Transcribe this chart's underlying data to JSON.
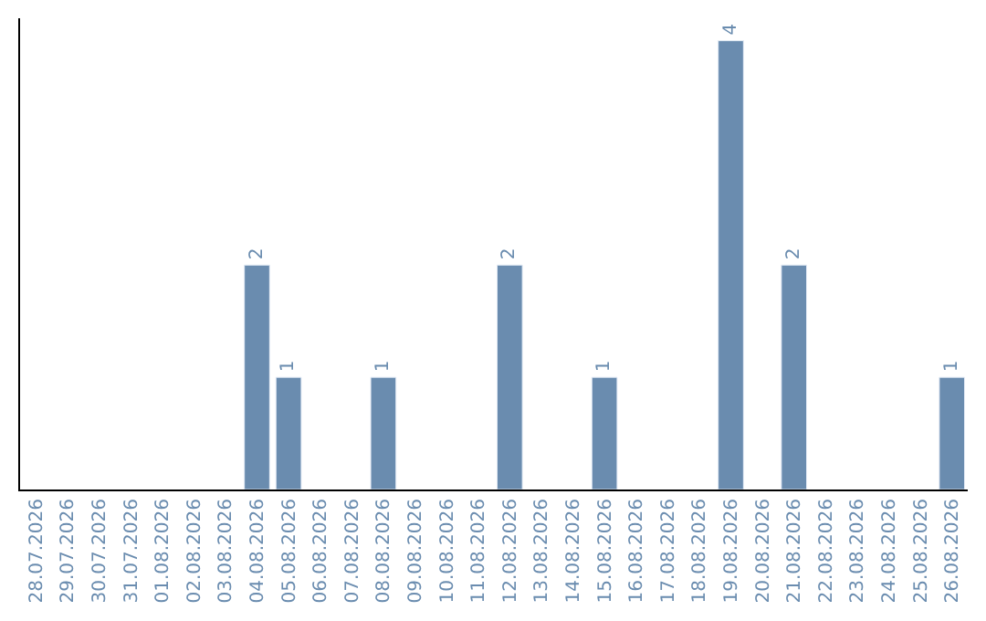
{
  "chart_data": {
    "type": "bar",
    "categories": [
      "28.07.2026",
      "29.07.2026",
      "30.07.2026",
      "31.07.2026",
      "01.08.2026",
      "02.08.2026",
      "03.08.2026",
      "04.08.2026",
      "05.08.2026",
      "06.08.2026",
      "07.08.2026",
      "08.08.2026",
      "09.08.2026",
      "10.08.2026",
      "11.08.2026",
      "12.08.2026",
      "13.08.2026",
      "14.08.2026",
      "15.08.2026",
      "16.08.2026",
      "17.08.2026",
      "18.08.2026",
      "19.08.2026",
      "20.08.2026",
      "21.08.2026",
      "22.08.2026",
      "23.08.2026",
      "24.08.2026",
      "25.08.2026",
      "26.08.2026"
    ],
    "values": [
      null,
      null,
      null,
      null,
      null,
      null,
      null,
      2,
      1,
      null,
      null,
      1,
      null,
      null,
      null,
      2,
      null,
      null,
      1,
      null,
      null,
      null,
      4,
      null,
      2,
      null,
      null,
      null,
      null,
      1
    ],
    "color": "#6a8caf",
    "ylim": [
      0,
      4.2
    ],
    "tick_labels": "x",
    "data_labels": true,
    "legend": false
  }
}
